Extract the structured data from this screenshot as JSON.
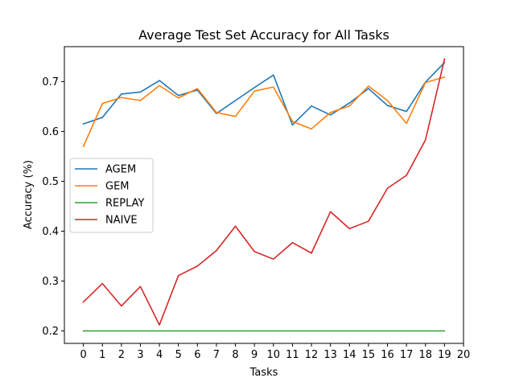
{
  "chart_data": {
    "type": "line",
    "title": "Average Test Set Accuracy for All Tasks",
    "xlabel": "Tasks",
    "ylabel": "Accuracy (%)",
    "x": [
      0,
      1,
      2,
      3,
      4,
      5,
      6,
      7,
      8,
      9,
      10,
      11,
      12,
      13,
      14,
      15,
      16,
      17,
      18,
      19
    ],
    "x_ticks": [
      "0",
      "1",
      "2",
      "3",
      "4",
      "5",
      "6",
      "7",
      "8",
      "9",
      "10",
      "11",
      "12",
      "13",
      "14",
      "15",
      "16",
      "17",
      "18",
      "19",
      "20"
    ],
    "y_ticks": [
      "0.2",
      "0.3",
      "0.4",
      "0.5",
      "0.6",
      "0.7"
    ],
    "xlim": [
      -1,
      20
    ],
    "ylim": [
      0.175,
      0.77
    ],
    "grid": false,
    "legend_position": "center-left",
    "series": [
      {
        "name": "AGEM",
        "color": "#1f77b4",
        "values": [
          0.615,
          0.628,
          0.675,
          0.679,
          0.702,
          0.672,
          0.683,
          0.636,
          0.662,
          0.688,
          0.713,
          0.613,
          0.651,
          0.633,
          0.657,
          0.686,
          0.652,
          0.64,
          0.699,
          0.738
        ]
      },
      {
        "name": "GEM",
        "color": "#ff7f0e",
        "values": [
          0.57,
          0.656,
          0.668,
          0.662,
          0.692,
          0.667,
          0.686,
          0.638,
          0.63,
          0.681,
          0.689,
          0.62,
          0.605,
          0.638,
          0.651,
          0.691,
          0.662,
          0.616,
          0.698,
          0.709
        ]
      },
      {
        "name": "REPLAY",
        "color": "#2ca02c",
        "values": [
          0.2,
          0.2,
          0.2,
          0.2,
          0.2,
          0.2,
          0.2,
          0.2,
          0.2,
          0.2,
          0.2,
          0.2,
          0.2,
          0.2,
          0.2,
          0.2,
          0.2,
          0.2,
          0.2,
          0.2
        ]
      },
      {
        "name": "NAIVE",
        "color": "#d62728",
        "values": [
          0.258,
          0.295,
          0.25,
          0.289,
          0.212,
          0.311,
          0.33,
          0.361,
          0.41,
          0.359,
          0.344,
          0.377,
          0.356,
          0.439,
          0.405,
          0.42,
          0.486,
          0.512,
          0.583,
          0.745
        ]
      }
    ]
  }
}
